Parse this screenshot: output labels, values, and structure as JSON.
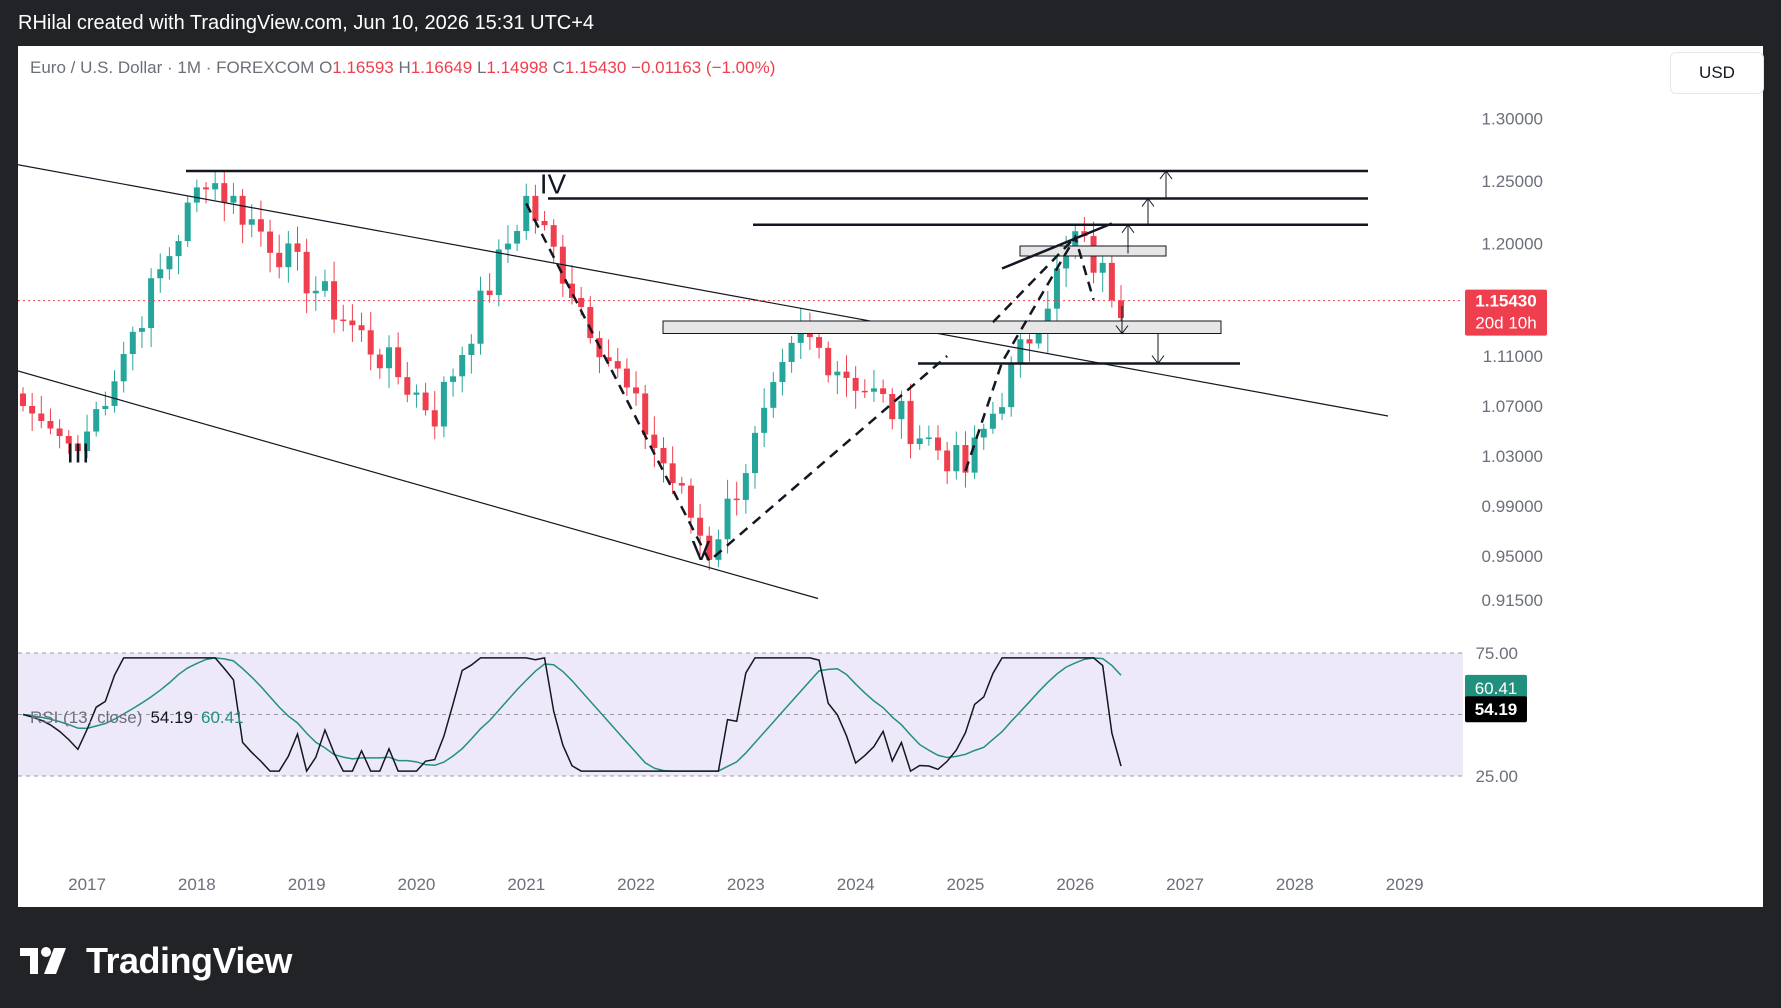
{
  "header": {
    "text": "RHilal created with TradingView.com, Jun 10, 2026 15:31 UTC+4"
  },
  "symbol": {
    "name": "Euro / U.S. Dollar · 1M · FOREXCOM",
    "open_label": "O",
    "open": "1.16593",
    "high_label": "H",
    "high": "1.16649",
    "low_label": "L",
    "low": "1.14998",
    "close_label": "C",
    "close": "1.15430",
    "change": "−0.01163 (−1.00%)"
  },
  "currency_button": "USD",
  "price_axis": {
    "ticks": [
      "1.30000",
      "1.25000",
      "1.20000",
      "1.15000",
      "1.11000",
      "1.07000",
      "1.03000",
      "0.99000",
      "0.95000",
      "0.91500"
    ]
  },
  "price_badge": {
    "price": "1.15430",
    "countdown": "20d 10h",
    "color": "#ef3f4e"
  },
  "rsi": {
    "legend": "RSI (13, close)",
    "value": "54.19",
    "ma_value": "60.41",
    "axis_ticks": [
      "75.00",
      "25.00"
    ],
    "line_color": "#131722",
    "ma_color": "#22907f"
  },
  "time_axis": {
    "labels": [
      "2017",
      "2018",
      "2019",
      "2020",
      "2021",
      "2022",
      "2023",
      "2024",
      "2025",
      "2026",
      "2027",
      "2028",
      "2029"
    ]
  },
  "wave_labels": {
    "iii": "III",
    "iv": "IV",
    "v": "V"
  },
  "colors": {
    "up": "#26a69a",
    "down": "#ef3f4e",
    "lines": "#131722",
    "band": "#ede9f8"
  },
  "footer": {
    "brand": "TradingView"
  },
  "chart_data": {
    "type": "candlestick",
    "title": "Euro / U.S. Dollar · 1M · FOREXCOM",
    "timeframe": "1M",
    "x_range": [
      "2016-06",
      "2029-06"
    ],
    "ylim": [
      0.91,
      1.31
    ],
    "last_price": 1.1543,
    "key_candles": [
      {
        "date": "2016-12",
        "value": 1.034,
        "note": "low"
      },
      {
        "date": "2018-02",
        "value": 1.256,
        "note": "high"
      },
      {
        "date": "2020-03",
        "value": 1.064,
        "note": "low"
      },
      {
        "date": "2021-01",
        "value": 1.235,
        "note": "high"
      },
      {
        "date": "2022-09",
        "value": 0.954,
        "note": "low"
      },
      {
        "date": "2023-07",
        "value": 1.127,
        "note": "high"
      },
      {
        "date": "2025-01",
        "value": 1.018,
        "note": "low"
      },
      {
        "date": "2026-01",
        "value": 1.205,
        "note": "high"
      },
      {
        "date": "2026-06",
        "value": 1.1543,
        "note": "last close"
      }
    ],
    "horizontal_levels": [
      1.258,
      1.236,
      1.215,
      1.104
    ],
    "zones": [
      {
        "from": 1.19,
        "to": 1.198
      },
      {
        "from": 1.128,
        "to": 1.138
      }
    ],
    "rsi": {
      "period": 13,
      "value": 54.19,
      "ma": 60.41,
      "upper": 75,
      "lower": 25,
      "middle": 50
    }
  }
}
